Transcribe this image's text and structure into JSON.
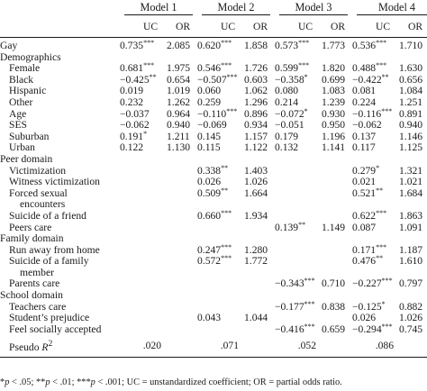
{
  "columns": {
    "models": [
      "Model 1",
      "Model 2",
      "Model 3",
      "Model 4"
    ],
    "uc_label": "UC",
    "or_label": "OR"
  },
  "rows": [
    {
      "type": "data",
      "label": "Gay",
      "indent": false,
      "cells": [
        [
          "0.735",
          "***",
          "2.085"
        ],
        [
          "0.620",
          "***",
          "1.858"
        ],
        [
          "0.573",
          "***",
          "1.773"
        ],
        [
          "0.536",
          "***",
          "1.710"
        ]
      ]
    },
    {
      "type": "section",
      "label": "Demographics"
    },
    {
      "type": "data",
      "label": "Female",
      "indent": true,
      "cells": [
        [
          "0.681",
          "***",
          "1.975"
        ],
        [
          "0.546",
          "***",
          "1.726"
        ],
        [
          "0.599",
          "***",
          "1.820"
        ],
        [
          "0.488",
          "***",
          "1.630"
        ]
      ]
    },
    {
      "type": "data",
      "label": "Black",
      "indent": true,
      "cells": [
        [
          "−0.425",
          "**",
          "0.654"
        ],
        [
          "−0.507",
          "***",
          "0.603"
        ],
        [
          "−0.358",
          "*",
          "0.699"
        ],
        [
          "−0.422",
          "**",
          "0.656"
        ]
      ]
    },
    {
      "type": "data",
      "label": "Hispanic",
      "indent": true,
      "cells": [
        [
          "0.019",
          "",
          "1.019"
        ],
        [
          "0.060",
          "",
          "1.062"
        ],
        [
          "0.080",
          "",
          "1.083"
        ],
        [
          "0.081",
          "",
          "1.084"
        ]
      ]
    },
    {
      "type": "data",
      "label": "Other",
      "indent": true,
      "cells": [
        [
          "0.232",
          "",
          "1.262"
        ],
        [
          "0.259",
          "",
          "1.296"
        ],
        [
          "0.214",
          "",
          "1.239"
        ],
        [
          "0.224",
          "",
          "1.251"
        ]
      ]
    },
    {
      "type": "data",
      "label": "Age",
      "indent": true,
      "cells": [
        [
          "−0.037",
          "",
          "0.964"
        ],
        [
          "−0.110",
          "***",
          "0.896"
        ],
        [
          "−0.072",
          "*",
          "0.930"
        ],
        [
          "−0.116",
          "***",
          "0.891"
        ]
      ]
    },
    {
      "type": "data",
      "label": "SES",
      "indent": true,
      "cells": [
        [
          "−0.062",
          "",
          "0.940"
        ],
        [
          "−0.069",
          "",
          "0.934"
        ],
        [
          "−0.051",
          "",
          "0.950"
        ],
        [
          "−0.062",
          "",
          "0.940"
        ]
      ]
    },
    {
      "type": "data",
      "label": "Suburban",
      "indent": true,
      "cells": [
        [
          "0.191",
          "*",
          "1.211"
        ],
        [
          "0.145",
          "",
          "1.157"
        ],
        [
          "0.179",
          "",
          "1.196"
        ],
        [
          "0.137",
          "",
          "1.146"
        ]
      ]
    },
    {
      "type": "data",
      "label": "Urban",
      "indent": true,
      "cells": [
        [
          "0.122",
          "",
          "1.130"
        ],
        [
          "0.115",
          "",
          "1.122"
        ],
        [
          "0.132",
          "",
          "1.141"
        ],
        [
          "0.117",
          "",
          "1.125"
        ]
      ]
    },
    {
      "type": "section",
      "label": "Peer domain"
    },
    {
      "type": "data",
      "label": "Victimization",
      "indent": true,
      "cells": [
        [
          "",
          "",
          ""
        ],
        [
          "0.338",
          "**",
          "1.403"
        ],
        [
          "",
          "",
          ""
        ],
        [
          "0.279",
          "*",
          "1.321"
        ]
      ]
    },
    {
      "type": "data",
      "label": "Witness victimization",
      "indent": true,
      "cells": [
        [
          "",
          "",
          ""
        ],
        [
          "0.026",
          "",
          "1.026"
        ],
        [
          "",
          "",
          ""
        ],
        [
          "0.021",
          "",
          "1.021"
        ]
      ]
    },
    {
      "type": "data",
      "label": "Forced sexual",
      "indent": true,
      "cells": [
        [
          "",
          "",
          ""
        ],
        [
          "0.509",
          "**",
          "1.664"
        ],
        [
          "",
          "",
          ""
        ],
        [
          "0.521",
          "**",
          "1.684"
        ]
      ]
    },
    {
      "type": "data",
      "label": "encounters",
      "indent": true,
      "extra_indent": true,
      "cells": [
        [
          "",
          "",
          ""
        ],
        [
          "",
          "",
          ""
        ],
        [
          "",
          "",
          ""
        ],
        [
          "",
          "",
          ""
        ]
      ]
    },
    {
      "type": "data",
      "label": "Suicide of a friend",
      "indent": true,
      "cells": [
        [
          "",
          "",
          ""
        ],
        [
          "0.660",
          "***",
          "1.934"
        ],
        [
          "",
          "",
          ""
        ],
        [
          "0.622",
          "***",
          "1.863"
        ]
      ]
    },
    {
      "type": "data",
      "label": "Peers care",
      "indent": true,
      "cells": [
        [
          "",
          "",
          ""
        ],
        [
          "",
          "",
          ""
        ],
        [
          "0.139",
          "**",
          "1.149"
        ],
        [
          "0.087",
          "",
          "1.091"
        ]
      ]
    },
    {
      "type": "section",
      "label": "Family domain"
    },
    {
      "type": "data",
      "label": "Run away from home",
      "indent": true,
      "cells": [
        [
          "",
          "",
          ""
        ],
        [
          "0.247",
          "***",
          "1.280"
        ],
        [
          "",
          "",
          ""
        ],
        [
          "0.171",
          "***",
          "1.187"
        ]
      ]
    },
    {
      "type": "data",
      "label": "Suicide of a family",
      "indent": true,
      "cells": [
        [
          "",
          "",
          ""
        ],
        [
          "0.572",
          "***",
          "1.772"
        ],
        [
          "",
          "",
          ""
        ],
        [
          "0.476",
          "**",
          "1.610"
        ]
      ]
    },
    {
      "type": "data",
      "label": "member",
      "indent": true,
      "extra_indent": true,
      "cells": [
        [
          "",
          "",
          ""
        ],
        [
          "",
          "",
          ""
        ],
        [
          "",
          "",
          ""
        ],
        [
          "",
          "",
          ""
        ]
      ]
    },
    {
      "type": "data",
      "label": "Parents care",
      "indent": true,
      "cells": [
        [
          "",
          "",
          ""
        ],
        [
          "",
          "",
          ""
        ],
        [
          "−0.343",
          "***",
          "0.710"
        ],
        [
          "−0.227",
          "***",
          "0.797"
        ]
      ]
    },
    {
      "type": "section",
      "label": "School domain"
    },
    {
      "type": "data",
      "label": "Teachers care",
      "indent": true,
      "cells": [
        [
          "",
          "",
          ""
        ],
        [
          "",
          "",
          ""
        ],
        [
          "−0.177",
          "***",
          "0.838"
        ],
        [
          "−0.125",
          "*",
          "0.882"
        ]
      ]
    },
    {
      "type": "data",
      "label": "Student’s prejudice",
      "indent": true,
      "cells": [
        [
          "",
          "",
          ""
        ],
        [
          "0.043",
          "",
          "1.044"
        ],
        [
          "",
          "",
          ""
        ],
        [
          "0.026",
          "",
          "1.026"
        ]
      ]
    },
    {
      "type": "data",
      "label": "Feel socially accepted",
      "indent": true,
      "cells": [
        [
          "",
          "",
          ""
        ],
        [
          "",
          "",
          ""
        ],
        [
          "−0.416",
          "***",
          "0.659"
        ],
        [
          "−0.294",
          "***",
          "0.745"
        ]
      ]
    },
    {
      "type": "pseudo",
      "label": "Pseudo ",
      "label_italic": "R",
      "label_sup": "2",
      "values": [
        ".020",
        ".071",
        ".052",
        ".086"
      ]
    }
  ],
  "footnote": {
    "s1": "*",
    "p1": "p",
    "t1": " < .05; ",
    "s2": "**",
    "p2": "p",
    "t2": " < .01; ",
    "s3": "***",
    "p3": "p",
    "t3": " < .001; UC = unstandardized coefficient; OR = partial odds ratio."
  }
}
